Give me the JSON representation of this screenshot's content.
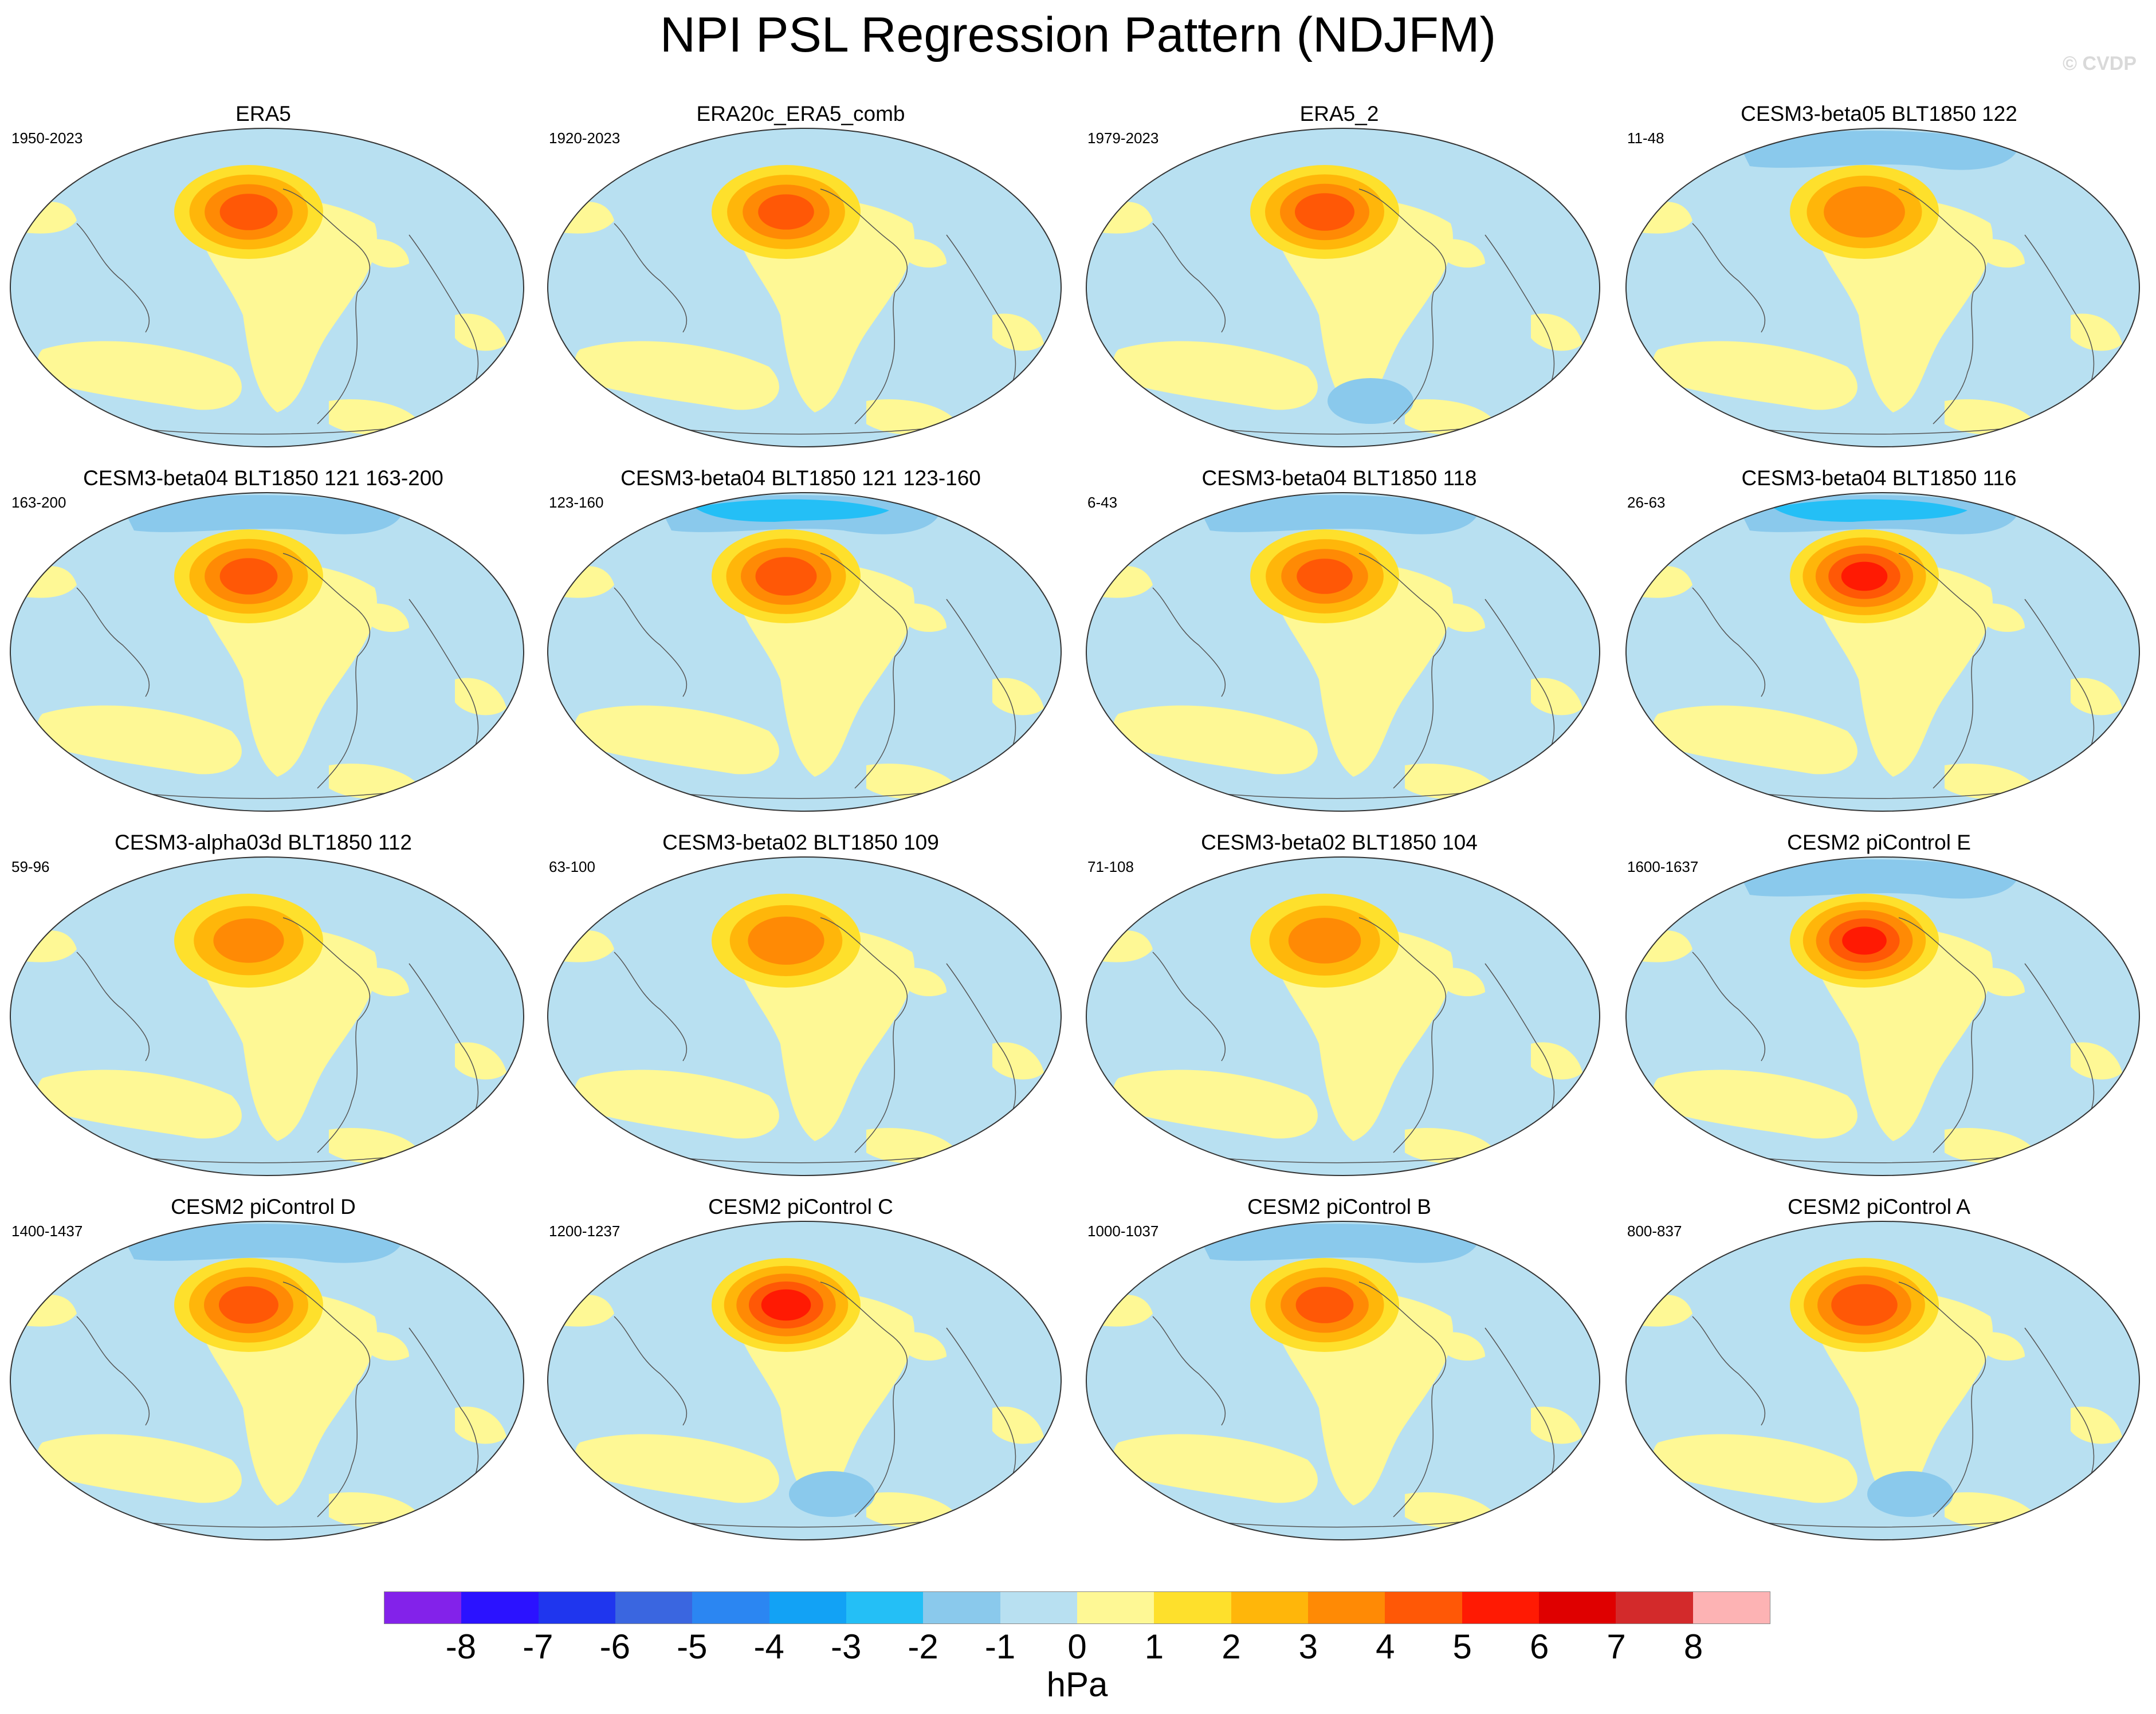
{
  "title": "NPI PSL Regression Pattern (NDJFM)",
  "watermark": "© CVDP",
  "panels": [
    {
      "title": "ERA5",
      "years": "1950-2023",
      "amp": 4.3,
      "low": "none"
    },
    {
      "title": "ERA20c_ERA5_comb",
      "years": "1920-2023",
      "amp": 4.2,
      "low": "none"
    },
    {
      "title": "ERA5_2",
      "years": "1979-2023",
      "amp": 4.4,
      "low": "south"
    },
    {
      "title": "CESM3-beta05 BLT1850 122",
      "years": "11-48",
      "amp": 3.8,
      "low": "arctic"
    },
    {
      "title": "CESM3-beta04 BLT1850 121 163-200",
      "years": "163-200",
      "amp": 4.3,
      "low": "arctic"
    },
    {
      "title": "CESM3-beta04 BLT1850 121 123-160",
      "years": "123-160",
      "amp": 4.5,
      "low": "arctic-strong"
    },
    {
      "title": "CESM3-beta04 BLT1850 118",
      "years": "6-43",
      "amp": 4.2,
      "low": "arctic"
    },
    {
      "title": "CESM3-beta04 BLT1850 116",
      "years": "26-63",
      "amp": 5.2,
      "low": "arctic-strong"
    },
    {
      "title": "CESM3-alpha03d BLT1850 112",
      "years": "59-96",
      "amp": 3.2,
      "low": "none"
    },
    {
      "title": "CESM3-beta02 BLT1850 109",
      "years": "63-100",
      "amp": 3.5,
      "low": "none"
    },
    {
      "title": "CESM3-beta02 BLT1850 104",
      "years": "71-108",
      "amp": 3.3,
      "low": "none"
    },
    {
      "title": "CESM2 piControl E",
      "years": "1600-1637",
      "amp": 5.1,
      "low": "arctic"
    },
    {
      "title": "CESM2 piControl D",
      "years": "1400-1437",
      "amp": 4.4,
      "low": "arctic"
    },
    {
      "title": "CESM2 piControl C",
      "years": "1200-1237",
      "amp": 5.4,
      "low": "south"
    },
    {
      "title": "CESM2 piControl B",
      "years": "1000-1037",
      "amp": 4.3,
      "low": "arctic"
    },
    {
      "title": "CESM2 piControl A",
      "years": "800-837",
      "amp": 4.8,
      "low": "south"
    }
  ],
  "colorbar": {
    "units": "hPa",
    "labels": [
      "-8",
      "-7",
      "-6",
      "-5",
      "-4",
      "-3",
      "-2",
      "-1",
      "0",
      "1",
      "2",
      "3",
      "4",
      "5",
      "6",
      "7",
      "8"
    ],
    "colors": [
      "#8322ea",
      "#2b12ff",
      "#1f36ee",
      "#3a66e0",
      "#2b86f2",
      "#12a2f5",
      "#24bff6",
      "#8ac9ec",
      "#b8e0f1",
      "#fef895",
      "#fee02c",
      "#ffb60a",
      "#ff8a05",
      "#ff5806",
      "#ff1a03",
      "#df0000",
      "#d32a2b",
      "#fdb3b4"
    ]
  }
}
